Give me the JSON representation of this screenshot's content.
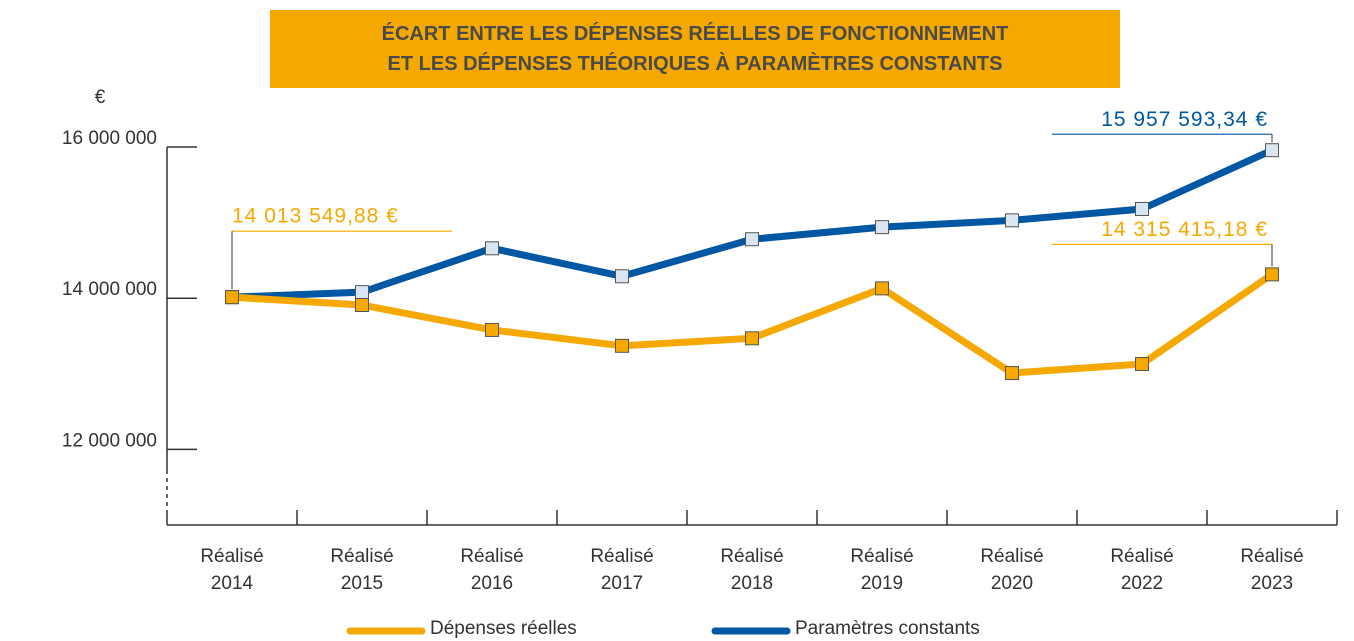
{
  "chart_data": {
    "type": "line",
    "title": [
      "ÉCART ENTRE LES DÉPENSES RÉELLES DE FONCTIONNEMENT",
      "ET LES DÉPENSES THÉORIQUES À PARAMÈTRES CONSTANTS"
    ],
    "y_unit": "€",
    "categories": [
      "Réalisé 2014",
      "Réalisé 2015",
      "Réalisé 2016",
      "Réalisé 2017",
      "Réalisé 2018",
      "Réalisé 2019",
      "Réalisé 2020",
      "Réalisé 2022",
      "Réalisé 2023"
    ],
    "ylim": [
      11000000,
      16000000
    ],
    "yticks": [
      {
        "value": 12000000,
        "label": "12 000 000"
      },
      {
        "value": 14000000,
        "label": "14 000 000"
      },
      {
        "value": 16000000,
        "label": "16 000 000"
      }
    ],
    "series": [
      {
        "name": "Paramètres constants",
        "color": "#0057a4",
        "marker_fill": "#d9e6f2",
        "values": [
          14013549.88,
          14080000,
          14660000,
          14290000,
          14780000,
          14940000,
          15030000,
          15180000,
          15957593.34
        ],
        "value_labels": [
          null,
          null,
          null,
          null,
          null,
          null,
          null,
          null,
          "15 957 593,34 €"
        ]
      },
      {
        "name": "Dépenses réelles",
        "color": "#f5a800",
        "marker_fill": "#f5a800",
        "values": [
          14013549.88,
          13910000,
          13580000,
          13370000,
          13470000,
          14130000,
          13010000,
          13130000,
          14315415.18
        ],
        "value_labels": [
          "14 013 549,88 €",
          null,
          null,
          null,
          null,
          null,
          null,
          null,
          "14 315 415,18 €"
        ]
      }
    ],
    "legend_order": [
      1,
      0
    ]
  }
}
